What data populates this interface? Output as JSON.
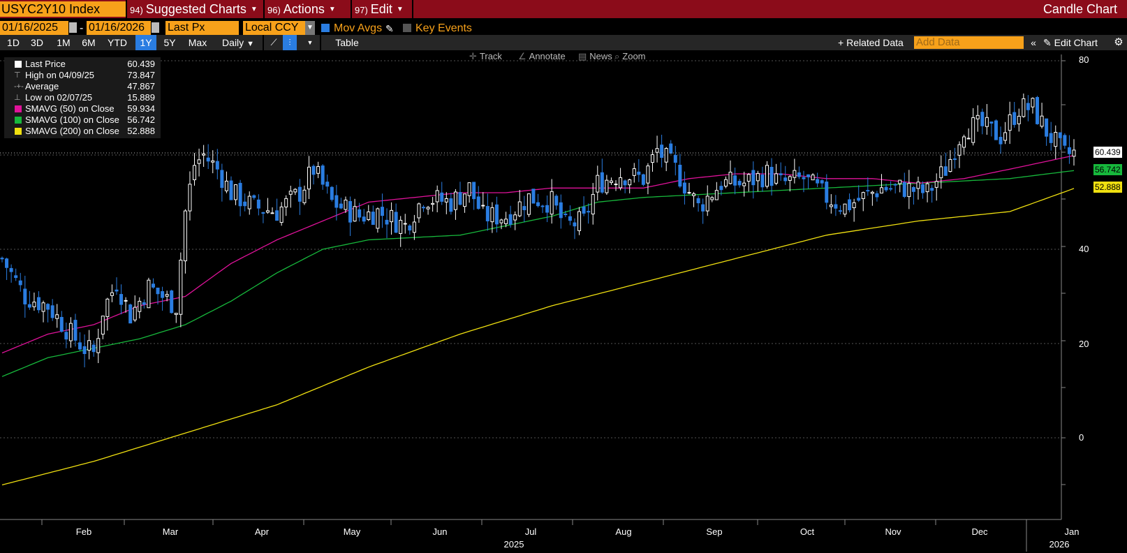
{
  "header": {
    "ticker": "USYC2Y10 Index",
    "menus": [
      {
        "num": "94)",
        "label": "Suggested Charts"
      },
      {
        "num": "96)",
        "label": "Actions"
      },
      {
        "num": "97)",
        "label": "Edit"
      }
    ],
    "view_title": "Candle Chart"
  },
  "settings": {
    "start_date": "01/16/2025",
    "end_date": "01/16/2026",
    "date_separator": "-",
    "price_field": "Last Px",
    "currency": "Local CCY",
    "mov_avgs_label": "Mov Avgs",
    "key_events_label": "Key Events"
  },
  "ranges": {
    "items": [
      "1D",
      "3D",
      "1M",
      "6M",
      "YTD",
      "1Y",
      "5Y",
      "Max"
    ],
    "selected": "1Y",
    "frequency": "Daily",
    "table_label": "Table",
    "related_data_label": "Related Data",
    "add_data_placeholder": "Add Data",
    "edit_chart_label": "Edit Chart"
  },
  "tools": {
    "track": "Track",
    "annotate": "Annotate",
    "news": "News",
    "zoom": "Zoom"
  },
  "legend": {
    "last_price": {
      "label": "Last Price",
      "value": "60.439"
    },
    "high": {
      "label": "High on 04/09/25",
      "value": "73.847"
    },
    "average": {
      "label": "Average",
      "value": "47.867"
    },
    "low": {
      "label": "Low on 02/07/25",
      "value": "15.889"
    },
    "sma50": {
      "label": "SMAVG (50)  on Close",
      "value": "59.934",
      "color": "#e0129a"
    },
    "sma100": {
      "label": "SMAVG (100)  on Close",
      "value": "56.742",
      "color": "#17b83c"
    },
    "sma200": {
      "label": "SMAVG (200)  on Close",
      "value": "52.888",
      "color": "#f0e010"
    }
  },
  "colors": {
    "up_candle": "#ffffff",
    "down_candle": "#2a7de1",
    "accent": "#f7a11a",
    "header_bg": "#8b0c1a"
  },
  "chart_data": {
    "type": "candlestick",
    "y_ticks": [
      "80",
      "40",
      "20",
      "0"
    ],
    "ylim": [
      -10,
      80
    ],
    "months": [
      "Feb",
      "Mar",
      "Apr",
      "May",
      "Jun",
      "Jul",
      "Aug",
      "Sep",
      "Oct",
      "Nov",
      "Dec",
      "Jan"
    ],
    "years": [
      "2025",
      "2026"
    ],
    "last_price_tag": "60.439",
    "sma100_tag": "56.742",
    "sma200_tag": "52.888",
    "candle_anchors_close": [
      [
        0,
        38
      ],
      [
        5,
        30
      ],
      [
        10,
        28
      ],
      [
        15,
        22
      ],
      [
        18,
        19
      ],
      [
        20,
        18
      ],
      [
        22,
        27
      ],
      [
        25,
        33
      ],
      [
        28,
        26
      ],
      [
        32,
        32
      ],
      [
        38,
        28
      ],
      [
        40,
        48
      ],
      [
        42,
        58
      ],
      [
        44,
        60
      ],
      [
        47,
        57
      ],
      [
        50,
        52
      ],
      [
        55,
        49
      ],
      [
        60,
        48
      ],
      [
        65,
        52
      ],
      [
        68,
        57
      ],
      [
        72,
        50
      ],
      [
        78,
        47
      ],
      [
        82,
        48
      ],
      [
        88,
        45
      ],
      [
        92,
        51
      ],
      [
        98,
        50
      ],
      [
        102,
        53
      ],
      [
        105,
        47
      ],
      [
        110,
        47
      ],
      [
        115,
        51
      ],
      [
        120,
        50
      ],
      [
        123,
        45
      ],
      [
        127,
        46
      ],
      [
        130,
        54
      ],
      [
        135,
        56
      ],
      [
        140,
        55
      ],
      [
        143,
        61
      ],
      [
        147,
        57
      ],
      [
        152,
        49
      ],
      [
        157,
        54
      ],
      [
        162,
        54
      ],
      [
        167,
        56
      ],
      [
        170,
        54
      ],
      [
        175,
        55
      ],
      [
        180,
        51
      ],
      [
        184,
        49
      ],
      [
        188,
        51
      ],
      [
        192,
        53
      ],
      [
        197,
        53
      ],
      [
        202,
        52
      ],
      [
        206,
        57
      ],
      [
        210,
        66
      ],
      [
        214,
        66
      ],
      [
        218,
        64
      ],
      [
        222,
        70
      ],
      [
        225,
        70
      ],
      [
        228,
        65
      ],
      [
        232,
        60
      ],
      [
        234,
        60.4
      ]
    ],
    "sma50": [
      [
        0,
        18
      ],
      [
        10,
        22
      ],
      [
        20,
        24
      ],
      [
        30,
        28
      ],
      [
        40,
        30
      ],
      [
        50,
        37
      ],
      [
        60,
        42
      ],
      [
        70,
        46
      ],
      [
        80,
        50
      ],
      [
        90,
        51
      ],
      [
        100,
        52
      ],
      [
        110,
        52
      ],
      [
        120,
        53
      ],
      [
        130,
        53
      ],
      [
        140,
        53
      ],
      [
        150,
        55
      ],
      [
        160,
        56
      ],
      [
        170,
        56
      ],
      [
        180,
        55
      ],
      [
        190,
        55
      ],
      [
        200,
        54
      ],
      [
        210,
        55
      ],
      [
        220,
        57
      ],
      [
        234,
        59.9
      ]
    ],
    "sma100": [
      [
        0,
        13
      ],
      [
        10,
        17
      ],
      [
        20,
        19
      ],
      [
        30,
        21
      ],
      [
        40,
        24
      ],
      [
        50,
        29
      ],
      [
        60,
        35
      ],
      [
        70,
        40
      ],
      [
        80,
        42
      ],
      [
        90,
        42.5
      ],
      [
        100,
        43
      ],
      [
        110,
        45
      ],
      [
        120,
        47
      ],
      [
        130,
        50
      ],
      [
        140,
        51
      ],
      [
        150,
        51.5
      ],
      [
        160,
        52
      ],
      [
        170,
        52.5
      ],
      [
        180,
        53
      ],
      [
        190,
        53.5
      ],
      [
        200,
        54
      ],
      [
        210,
        54.5
      ],
      [
        220,
        55
      ],
      [
        234,
        56.7
      ]
    ],
    "sma200": [
      [
        0,
        -10
      ],
      [
        20,
        -5
      ],
      [
        40,
        1
      ],
      [
        60,
        7
      ],
      [
        80,
        15
      ],
      [
        100,
        22
      ],
      [
        120,
        28
      ],
      [
        140,
        33
      ],
      [
        160,
        38
      ],
      [
        180,
        43
      ],
      [
        200,
        46
      ],
      [
        220,
        48
      ],
      [
        234,
        52.9
      ]
    ]
  }
}
